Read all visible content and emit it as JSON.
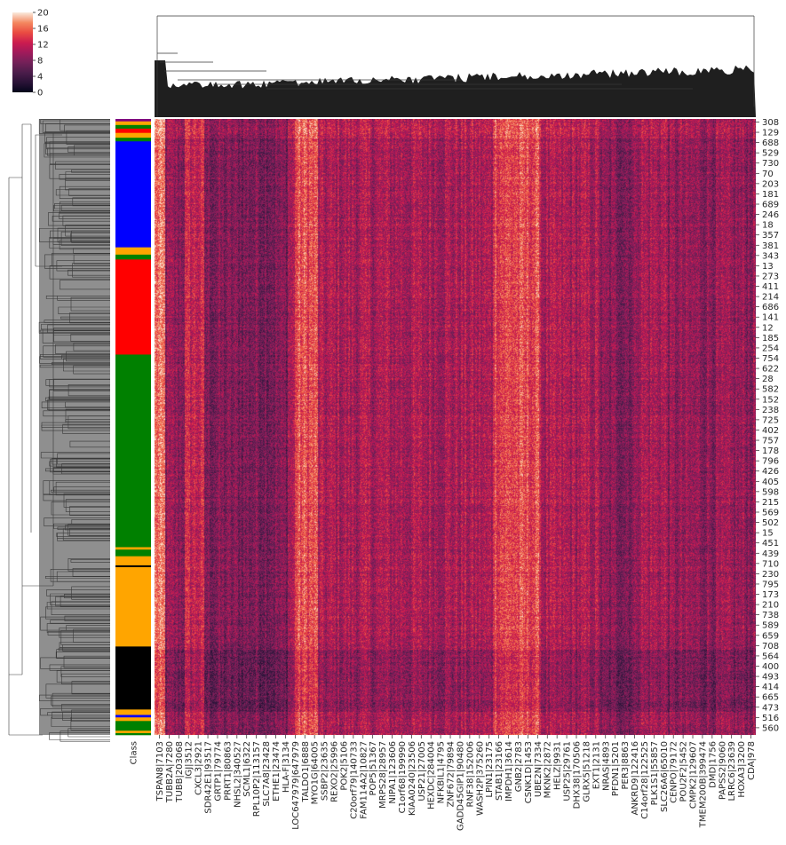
{
  "chart_data": {
    "type": "heatmap",
    "description_kind": "clustermap",
    "colormap": "rocket",
    "colorbar": {
      "ticks": [
        0,
        4,
        8,
        12,
        16,
        20
      ],
      "vmin": 0,
      "vmax": 20
    },
    "row_side_colors_label": "Class",
    "row_class_colors": [
      "purple",
      "orange",
      "green",
      "blue",
      "red",
      "black"
    ],
    "row_class_bands": [
      {
        "color": "purple",
        "fraction": 0.004
      },
      {
        "color": "orange",
        "fraction": 0.006
      },
      {
        "color": "green",
        "fraction": 0.006
      },
      {
        "color": "red",
        "fraction": 0.007
      },
      {
        "color": "orange",
        "fraction": 0.008
      },
      {
        "color": "green",
        "fraction": 0.006
      },
      {
        "color": "blue",
        "fraction": 0.175
      },
      {
        "color": "orange",
        "fraction": 0.012
      },
      {
        "color": "green",
        "fraction": 0.008
      },
      {
        "color": "red",
        "fraction": 0.157
      },
      {
        "color": "green",
        "fraction": 0.318
      },
      {
        "color": "orange",
        "fraction": 0.004
      },
      {
        "color": "green",
        "fraction": 0.011
      },
      {
        "color": "orange",
        "fraction": 0.015
      },
      {
        "color": "black",
        "fraction": 0.003
      },
      {
        "color": "orange",
        "fraction": 0.131
      },
      {
        "color": "black",
        "fraction": 0.104
      },
      {
        "color": "orange",
        "fraction": 0.009
      },
      {
        "color": "blue",
        "fraction": 0.004
      },
      {
        "color": "orange",
        "fraction": 0.006
      },
      {
        "color": "green",
        "fraction": 0.016
      },
      {
        "color": "orange",
        "fraction": 0.004
      },
      {
        "color": "green",
        "fraction": 0.003
      }
    ],
    "row_labels": [
      "308",
      "129",
      "688",
      "529",
      "730",
      "70",
      "203",
      "181",
      "689",
      "246",
      "18",
      "357",
      "381",
      "343",
      "13",
      "273",
      "411",
      "214",
      "686",
      "141",
      "12",
      "185",
      "254",
      "754",
      "622",
      "28",
      "582",
      "152",
      "238",
      "725",
      "402",
      "757",
      "178",
      "796",
      "426",
      "405",
      "598",
      "215",
      "569",
      "502",
      "15",
      "451",
      "439",
      "710",
      "230",
      "795",
      "173",
      "210",
      "738",
      "589",
      "659",
      "708",
      "564",
      "400",
      "493",
      "414",
      "665",
      "473",
      "516",
      "560"
    ],
    "col_labels": [
      "TSPAN8|7103",
      "TUBB2A|7280",
      "TUBB|203068",
      "IGJ|3512",
      "CXCL3|2921",
      "SDR42E1|93517",
      "GRTP1|79774",
      "PRRT1|80863",
      "NHSL2|340527",
      "SCML1|6322",
      "RPL10P2|113157",
      "SLC7A8|23428",
      "ETHE1|23474",
      "HLA-F|3134",
      "LOC647979|647979",
      "TALDO1|6888",
      "MYO1G|64005",
      "SSBP2|23635",
      "REXO2|25996",
      "POK2|5106",
      "C20orf79|140733",
      "FAM114A2|10827",
      "POP5|51367",
      "MRPS28|28957",
      "NIPA1|123606",
      "C1orf68|199990",
      "KIAA0240|23506",
      "USP21|27005",
      "HEXDC|284004",
      "NFKBIL1|4795",
      "ZNF672|79894",
      "GADD45GIP1|90480",
      "RNF38|152006",
      "WASH2P|375260",
      "LPIN1|23175",
      "STAB1|23166",
      "IMPDH1|3614",
      "GNB2|2783",
      "CSNK1D|1453",
      "UBE2N|7334",
      "MKNK2|2872",
      "HELZ|9931",
      "USP25|29761",
      "DHX38|170506",
      "GLRX5|51218",
      "EXT1|2131",
      "NRAS|4893",
      "PFDN1|5201",
      "PER3|8863",
      "ANKRD9|122416",
      "C14orf28|122525",
      "PLK1S1|55857",
      "SLC26A6|65010",
      "CENPO|79172",
      "POU2F2|5452",
      "CMPK2|129607",
      "TMEM200B|399474",
      "DMD|1756",
      "PAPSS2|9060",
      "LRRC6|23639",
      "HOXA3|3200",
      "CDA|978"
    ]
  }
}
